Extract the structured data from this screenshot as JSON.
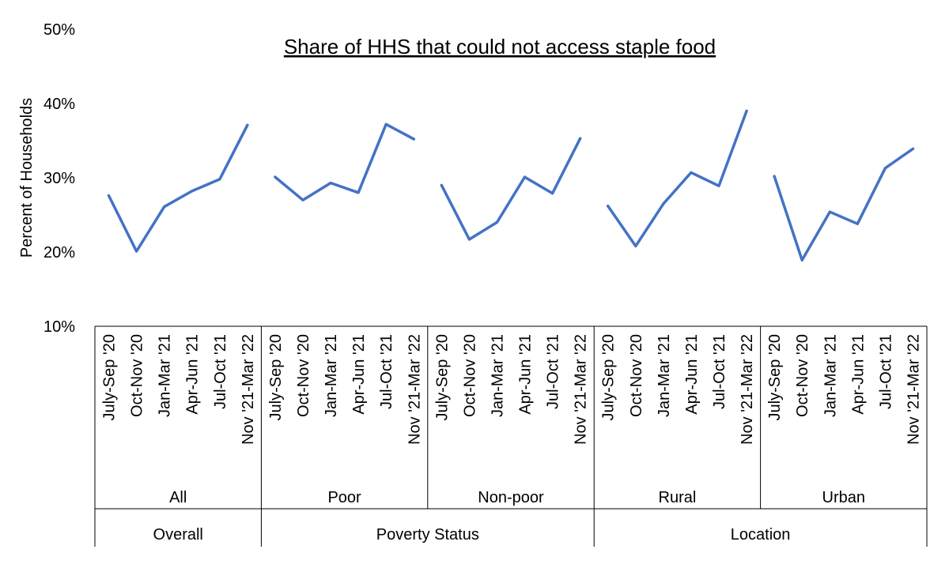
{
  "chart_data": {
    "type": "line",
    "title": "Share of HHS that could not access staple food",
    "ylabel": "Percent of Households",
    "xlabel": "",
    "ylim": [
      0.1,
      0.5
    ],
    "yticks": [
      "10%",
      "20%",
      "30%",
      "40%",
      "50%"
    ],
    "grid": false,
    "legend": "none",
    "line_color": "#4472C4",
    "periods": [
      "July-Sep '20",
      "Oct-Nov '20",
      "Jan-Mar '21",
      "Apr-Jun '21",
      "Jul-Oct '21",
      "Nov '21-Mar '22"
    ],
    "groups": [
      {
        "category": "Overall",
        "name": "All",
        "values": [
          0.276,
          0.201,
          0.261,
          0.282,
          0.298,
          0.371
        ]
      },
      {
        "category": "Poverty Status",
        "name": "Poor",
        "values": [
          0.301,
          0.27,
          0.293,
          0.28,
          0.372,
          0.352
        ]
      },
      {
        "category": "Poverty Status",
        "name": "Non-poor",
        "values": [
          0.29,
          0.217,
          0.24,
          0.301,
          0.279,
          0.353
        ]
      },
      {
        "category": "Location",
        "name": "Rural",
        "values": [
          0.262,
          0.208,
          0.265,
          0.307,
          0.289,
          0.39
        ]
      },
      {
        "category": "Location",
        "name": "Urban",
        "values": [
          0.302,
          0.189,
          0.254,
          0.238,
          0.313,
          0.339
        ]
      }
    ],
    "categories": [
      {
        "label": "Overall",
        "group_count": 1
      },
      {
        "label": "Poverty Status",
        "group_count": 2
      },
      {
        "label": "Location",
        "group_count": 2
      }
    ]
  }
}
